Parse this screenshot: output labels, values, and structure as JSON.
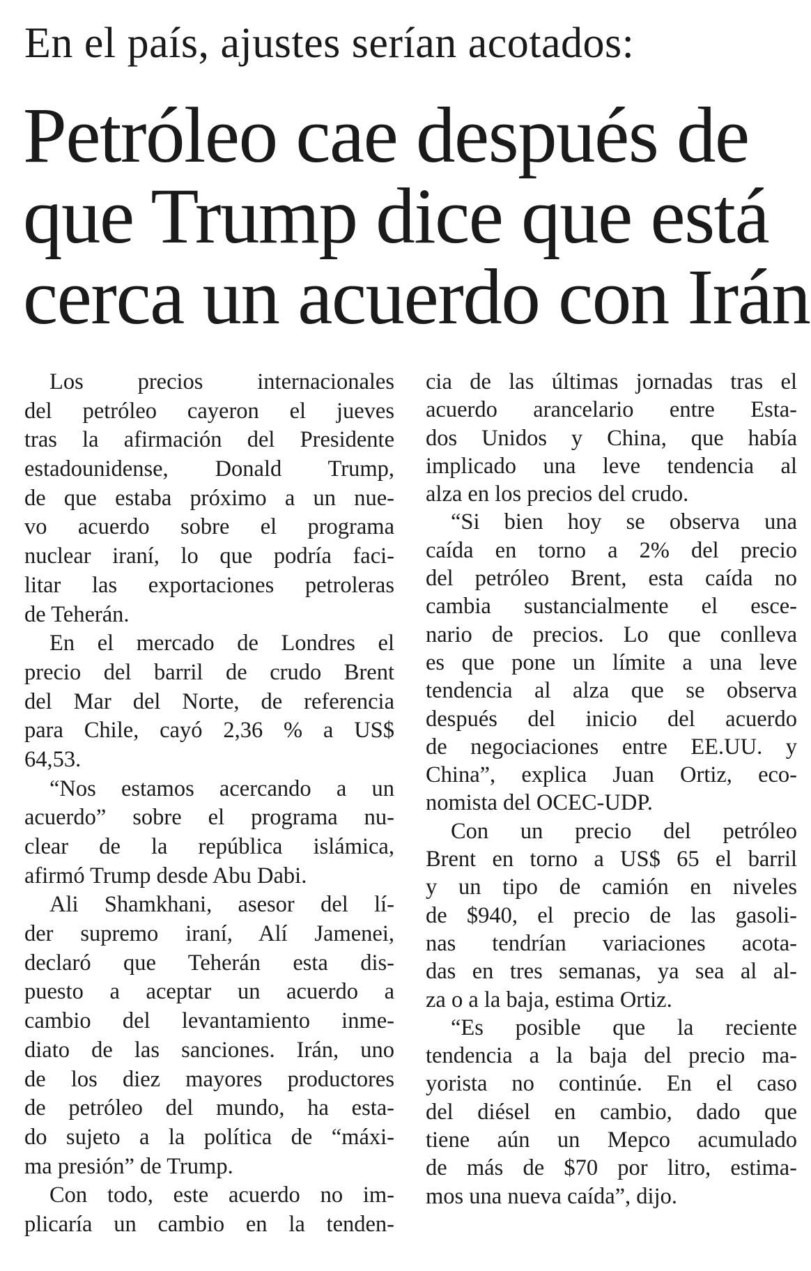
{
  "kicker": "En el país, ajustes serían acotados:",
  "headline": [
    "Petróleo cae después de",
    "que Trump dice que está",
    "cerca un acuerdo con Irán"
  ],
  "columns": [
    {
      "paragraphs": [
        {
          "indent": true,
          "continues": false,
          "lines": [
            "Los precios internacionales",
            "del petróleo cayeron el jueves",
            "tras la afirmación del Presidente",
            "estadounidense, Donald Trump,",
            "de que estaba próximo a un nue-",
            "vo acuerdo sobre el programa",
            "nuclear iraní, lo que podría faci-",
            "litar las exportaciones petroleras",
            "de Teherán."
          ]
        },
        {
          "indent": true,
          "continues": false,
          "lines": [
            "En el mercado de Londres el",
            "precio del barril de crudo Brent",
            "del Mar del Norte, de referencia",
            "para Chile, cayó 2,36 % a US$",
            "64,53."
          ]
        },
        {
          "indent": true,
          "continues": false,
          "lines": [
            "“Nos estamos acercando a un",
            "acuerdo” sobre el programa nu-",
            "clear de la república islámica,",
            "afirmó Trump desde Abu Dabi."
          ]
        },
        {
          "indent": true,
          "continues": false,
          "lines": [
            "Ali Shamkhani, asesor del lí-",
            "der supremo iraní, Alí Jamenei,",
            "declaró que Teherán esta dis-",
            "puesto a aceptar un acuerdo a",
            "cambio del levantamiento inme-",
            "diato de las sanciones. Irán, uno",
            "de los diez mayores productores",
            "de petróleo del mundo, ha esta-",
            "do sujeto a la política de “máxi-",
            "ma presión” de Trump."
          ]
        },
        {
          "indent": true,
          "continues": true,
          "lines": [
            "Con todo, este acuerdo no im-",
            "plicaría un cambio en la tenden-"
          ]
        }
      ]
    },
    {
      "paragraphs": [
        {
          "indent": false,
          "continues": false,
          "lines": [
            "cia de las últimas jornadas tras el",
            "acuerdo arancelario entre Esta-",
            "dos Unidos y China, que había",
            "implicado una leve tendencia al",
            "alza en los precios del crudo."
          ]
        },
        {
          "indent": true,
          "continues": false,
          "lines": [
            "“Si bien hoy se observa una",
            "caída en torno a 2% del precio",
            "del petróleo Brent, esta caída no",
            "cambia sustancialmente el esce-",
            "nario de precios. Lo que conlleva",
            "es que pone un límite a una leve",
            "tendencia al alza que se observa",
            "después del inicio del acuerdo",
            "de negociaciones entre EE.UU. y",
            "China”, explica Juan Ortiz, eco-",
            "nomista del OCEC-UDP."
          ]
        },
        {
          "indent": true,
          "continues": false,
          "lines": [
            "Con un precio del petróleo",
            "Brent en torno a US$ 65 el barril",
            "y un tipo de camión en niveles",
            "de $940, el precio de las gasoli-",
            "nas tendrían variaciones acota-",
            "das en tres semanas, ya sea al al-",
            "za o a la baja, estima Ortiz."
          ]
        },
        {
          "indent": true,
          "continues": false,
          "lines": [
            "“Es posible que la reciente",
            "tendencia a la baja del precio ma-",
            "yorista no continúe. En el caso",
            "del diésel en cambio, dado que",
            "tiene aún un Mepco acumulado",
            "de más de $70 por litro, estima-",
            "mos una nueva caída”, dijo."
          ]
        }
      ]
    }
  ]
}
